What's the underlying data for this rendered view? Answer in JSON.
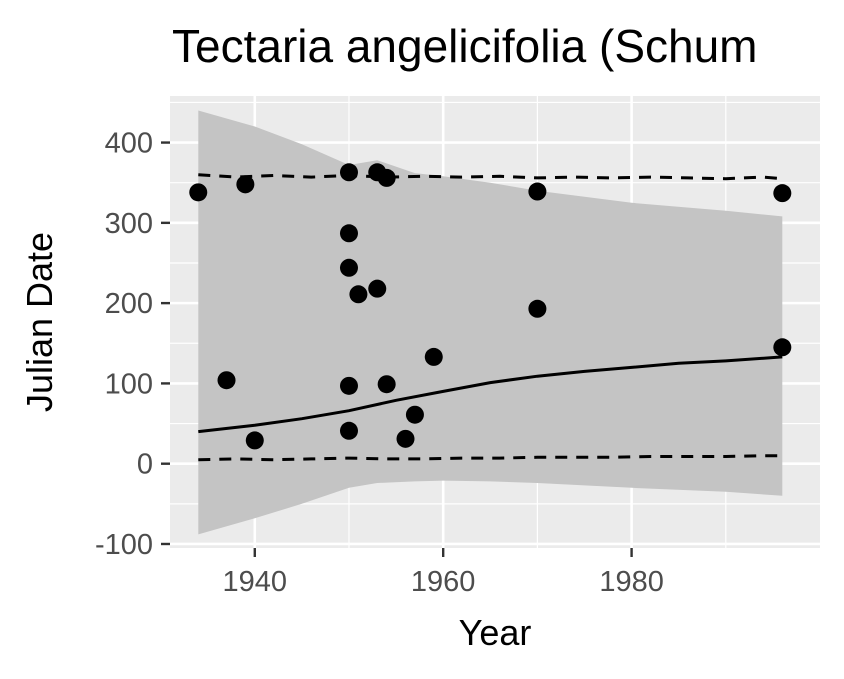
{
  "chart_data": {
    "type": "scatter",
    "title": "Tectaria angelicifolia (Schum",
    "xlabel": "Year",
    "ylabel": "Julian Date",
    "xlim": [
      1931,
      2000
    ],
    "ylim": [
      -105,
      458
    ],
    "x_ticks": [
      1940,
      1960,
      1980
    ],
    "y_ticks": [
      -100,
      0,
      100,
      200,
      300,
      400
    ],
    "x_tick_labels": [
      "1940",
      "1960",
      "1980"
    ],
    "y_tick_labels": [
      "-100",
      "0",
      "100",
      "200",
      "300",
      "400"
    ],
    "grid": true,
    "legend": "none",
    "colors": {
      "panel_background": "#ebebeb",
      "grid_major": "#ffffff",
      "ribbon": "#c4c4c4",
      "points": "#000000",
      "lines": "#000000"
    },
    "points": [
      {
        "x": 1934,
        "y": 338
      },
      {
        "x": 1937,
        "y": 104
      },
      {
        "x": 1939,
        "y": 348
      },
      {
        "x": 1940,
        "y": 29
      },
      {
        "x": 1950,
        "y": 363
      },
      {
        "x": 1950,
        "y": 287
      },
      {
        "x": 1950,
        "y": 244
      },
      {
        "x": 1950,
        "y": 97
      },
      {
        "x": 1950,
        "y": 41
      },
      {
        "x": 1951,
        "y": 211
      },
      {
        "x": 1953,
        "y": 363
      },
      {
        "x": 1953,
        "y": 218
      },
      {
        "x": 1954,
        "y": 356
      },
      {
        "x": 1954,
        "y": 99
      },
      {
        "x": 1956,
        "y": 31
      },
      {
        "x": 1957,
        "y": 61
      },
      {
        "x": 1959,
        "y": 133
      },
      {
        "x": 1970,
        "y": 339
      },
      {
        "x": 1970,
        "y": 193
      },
      {
        "x": 1996,
        "y": 337
      },
      {
        "x": 1996,
        "y": 145
      }
    ],
    "trend": {
      "name": "",
      "x": [
        1934,
        1940,
        1945,
        1950,
        1955,
        1960,
        1965,
        1970,
        1975,
        1980,
        1985,
        1990,
        1996
      ],
      "y": [
        40,
        48,
        56,
        66,
        79,
        90,
        101,
        109,
        115,
        120,
        125,
        128,
        133
      ]
    },
    "ribbon": {
      "x": [
        1934,
        1940,
        1945,
        1950,
        1953,
        1957,
        1960,
        1965,
        1970,
        1980,
        1990,
        1996
      ],
      "upper": [
        440,
        420,
        398,
        372,
        378,
        362,
        358,
        350,
        340,
        325,
        315,
        308
      ],
      "lower": [
        -88,
        -68,
        -50,
        -30,
        -24,
        -22,
        -21,
        -22,
        -24,
        -30,
        -35,
        -40
      ]
    },
    "upper_dashed": {
      "x": [
        1934,
        1938,
        1942,
        1946,
        1950,
        1954,
        1958,
        1962,
        1966,
        1970,
        1974,
        1978,
        1982,
        1986,
        1990,
        1994,
        1996
      ],
      "y": [
        360,
        357,
        359,
        357,
        359,
        357,
        358,
        357,
        358,
        356,
        357,
        356,
        357,
        356,
        355,
        357,
        355
      ]
    },
    "lower_dashed": {
      "x": [
        1934,
        1938,
        1942,
        1946,
        1950,
        1954,
        1958,
        1962,
        1966,
        1970,
        1974,
        1978,
        1982,
        1986,
        1990,
        1994,
        1996
      ],
      "y": [
        5,
        6,
        5,
        6,
        7,
        6,
        6,
        7,
        7,
        8,
        8,
        8,
        9,
        9,
        9,
        10,
        10
      ]
    }
  }
}
